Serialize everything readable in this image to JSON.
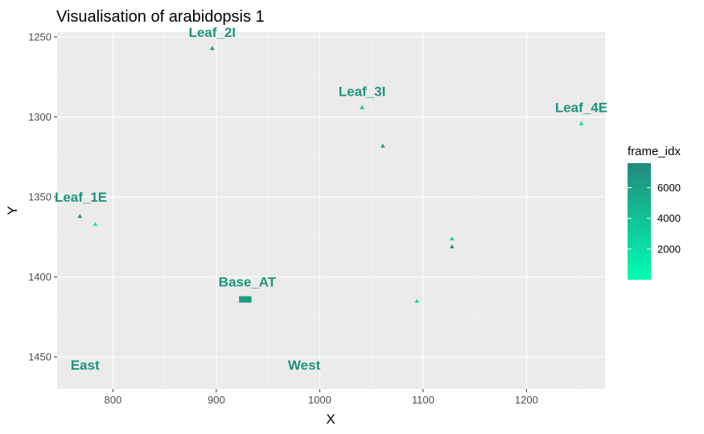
{
  "chart_data": {
    "type": "scatter",
    "title": "Visualisation of arabidopsis  1",
    "xlabel": "X",
    "ylabel": "Y",
    "xlim": [
      746,
      1276
    ],
    "ylim": [
      1247,
      1470
    ],
    "y_reversed": true,
    "x_ticks": [
      800,
      900,
      1000,
      1100,
      1200
    ],
    "y_ticks": [
      1250,
      1300,
      1350,
      1400,
      1450
    ],
    "grid": true,
    "legend": {
      "title": "frame_idx",
      "placement": "right",
      "ticks": [
        2000,
        4000,
        6000
      ],
      "range": [
        0,
        7600
      ],
      "color_low": "#00FFB2",
      "color_high": "#218A7B"
    },
    "marker": "triangle",
    "points": [
      {
        "x": 896,
        "y": 1257,
        "frame_idx": 6800
      },
      {
        "x": 1041,
        "y": 1294,
        "frame_idx": 3500
      },
      {
        "x": 1061,
        "y": 1318,
        "frame_idx": 7000
      },
      {
        "x": 1253,
        "y": 1304,
        "frame_idx": 2200
      },
      {
        "x": 768,
        "y": 1362,
        "frame_idx": 7200
      },
      {
        "x": 783,
        "y": 1367,
        "frame_idx": 1500
      },
      {
        "x": 1128,
        "y": 1376,
        "frame_idx": 3000
      },
      {
        "x": 1128,
        "y": 1381,
        "frame_idx": 7000
      },
      {
        "x": 1094,
        "y": 1415,
        "frame_idx": 1500
      }
    ],
    "base_cluster": {
      "x": [
        922,
        934
      ],
      "y": [
        1412,
        1416
      ],
      "frame_idx": 6500
    },
    "labels": [
      {
        "text": "Leaf_2I",
        "x": 896,
        "y": 1250,
        "frame_idx": 7000
      },
      {
        "text": "Leaf_3I",
        "x": 1041,
        "y": 1287,
        "frame_idx": 7000
      },
      {
        "text": "Leaf_4E",
        "x": 1253,
        "y": 1297,
        "frame_idx": 7000
      },
      {
        "text": "Leaf_1E",
        "x": 769,
        "y": 1353,
        "frame_idx": 7000
      },
      {
        "text": "Base_AT",
        "x": 930,
        "y": 1406,
        "frame_idx": 7000
      },
      {
        "text": "East",
        "x": 773,
        "y": 1458,
        "frame_idx": 7000
      },
      {
        "text": "West",
        "x": 985,
        "y": 1458,
        "frame_idx": 7000
      }
    ]
  }
}
